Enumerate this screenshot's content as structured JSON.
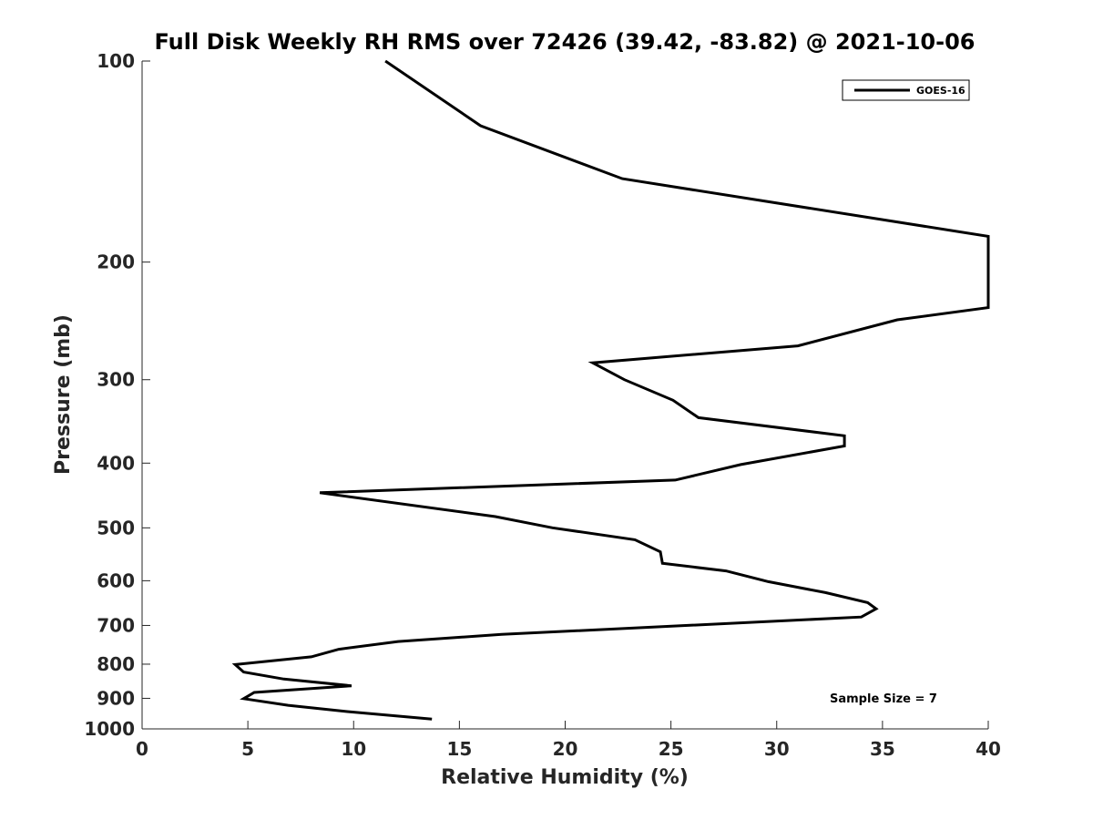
{
  "chart_data": {
    "type": "line",
    "title": "Full Disk Weekly RH RMS over 72426 (39.42, -83.82) @ 2021-10-06",
    "xlabel": "Relative Humidity (%)",
    "ylabel": "Pressure (mb)",
    "xlim": [
      0,
      40
    ],
    "ylim": [
      100,
      1000
    ],
    "y_scale": "log",
    "y_reversed": true,
    "grid": false,
    "legend_position": "top-right",
    "x_ticks": [
      "0",
      "5",
      "10",
      "15",
      "20",
      "25",
      "30",
      "35",
      "40"
    ],
    "y_ticks": [
      "100",
      "200",
      "300",
      "400",
      "500",
      "600",
      "700",
      "800",
      "900",
      "1000"
    ],
    "series": [
      {
        "name": "GOES-16",
        "color": "#000000",
        "points": [
          {
            "x": 11.5,
            "y": 100
          },
          {
            "x": 16.0,
            "y": 125
          },
          {
            "x": 22.7,
            "y": 150
          },
          {
            "x": 40.0,
            "y": 183
          },
          {
            "x": 40.0,
            "y": 234
          },
          {
            "x": 35.7,
            "y": 244
          },
          {
            "x": 31.0,
            "y": 267
          },
          {
            "x": 21.3,
            "y": 283
          },
          {
            "x": 22.8,
            "y": 300
          },
          {
            "x": 25.1,
            "y": 322
          },
          {
            "x": 26.3,
            "y": 342
          },
          {
            "x": 33.2,
            "y": 364
          },
          {
            "x": 33.2,
            "y": 377
          },
          {
            "x": 28.3,
            "y": 402
          },
          {
            "x": 25.2,
            "y": 424
          },
          {
            "x": 8.4,
            "y": 443
          },
          {
            "x": 16.7,
            "y": 481
          },
          {
            "x": 19.4,
            "y": 500
          },
          {
            "x": 23.3,
            "y": 521
          },
          {
            "x": 24.5,
            "y": 543
          },
          {
            "x": 24.6,
            "y": 565
          },
          {
            "x": 27.6,
            "y": 580
          },
          {
            "x": 29.6,
            "y": 602
          },
          {
            "x": 32.3,
            "y": 625
          },
          {
            "x": 34.3,
            "y": 647
          },
          {
            "x": 34.7,
            "y": 661
          },
          {
            "x": 34.0,
            "y": 680
          },
          {
            "x": 17.0,
            "y": 722
          },
          {
            "x": 12.1,
            "y": 740
          },
          {
            "x": 9.3,
            "y": 760
          },
          {
            "x": 8.0,
            "y": 780
          },
          {
            "x": 4.4,
            "y": 801
          },
          {
            "x": 4.8,
            "y": 822
          },
          {
            "x": 6.7,
            "y": 842
          },
          {
            "x": 9.9,
            "y": 862
          },
          {
            "x": 5.3,
            "y": 882
          },
          {
            "x": 4.8,
            "y": 901
          },
          {
            "x": 6.9,
            "y": 922
          },
          {
            "x": 9.7,
            "y": 942
          },
          {
            "x": 13.7,
            "y": 967
          }
        ]
      }
    ],
    "annotations": [
      {
        "text": "Sample Size = 7"
      }
    ]
  }
}
